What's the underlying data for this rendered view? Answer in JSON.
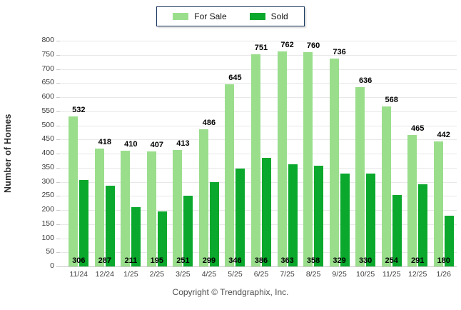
{
  "chart_data": {
    "type": "bar",
    "title": "",
    "categories": [
      "11/24",
      "12/24",
      "1/25",
      "2/25",
      "3/25",
      "4/25",
      "5/25",
      "6/25",
      "7/25",
      "8/25",
      "9/25",
      "10/25",
      "11/25",
      "12/25",
      "1/26"
    ],
    "series": [
      {
        "name": "For Sale",
        "color": "#9ade8c",
        "values": [
          532,
          418,
          410,
          407,
          413,
          486,
          645,
          751,
          762,
          760,
          736,
          636,
          568,
          465,
          442
        ]
      },
      {
        "name": "Sold",
        "color": "#0aa82c",
        "values": [
          306,
          287,
          211,
          195,
          251,
          299,
          346,
          386,
          363,
          358,
          329,
          330,
          254,
          291,
          180
        ]
      }
    ],
    "ylabel": "Number of Homes",
    "xlabel": "",
    "ylim": [
      0,
      800
    ],
    "ytick_step": 50,
    "grid": true,
    "legend_position": "top-center",
    "value_label_positions": {
      "for_sale": "above-bar",
      "sold": "bottom-of-bar"
    }
  },
  "footer": {
    "copyright": "Copyright © Trendgraphix, Inc."
  },
  "colors": {
    "grid": "#e8e8e8",
    "axis": "#c9c9c9",
    "tick_text": "#3c3c3c",
    "footer_text": "#4d4d4d",
    "legend_border": "#17375e",
    "for_sale": "#9ade8c",
    "sold": "#0aa82c"
  }
}
